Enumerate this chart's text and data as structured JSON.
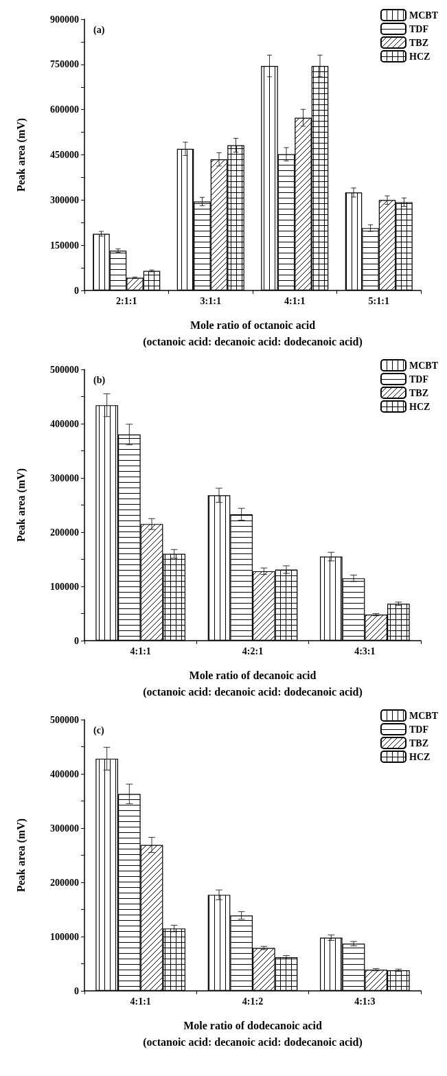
{
  "chart_data": [
    {
      "type": "bar",
      "annotations": [
        "(a)"
      ],
      "xlabel": "Mole ratio of octanoic acid\n(octanoic acid: decanoic acid: dodecanoic acid)",
      "ylabel": "Peak area (mV)",
      "categories": [
        "2:1:1",
        "3:1:1",
        "4:1:1",
        "5:1:1"
      ],
      "series": [
        {
          "name": "MCBT",
          "color": "#000000",
          "values": [
            188000,
            470000,
            745000,
            325000
          ],
          "errors": [
            8000,
            22000,
            36000,
            15000
          ]
        },
        {
          "name": "TDF",
          "color": "#000000",
          "values": [
            132000,
            295000,
            452000,
            207000
          ],
          "errors": [
            6000,
            14000,
            22000,
            11000
          ]
        },
        {
          "name": "TBZ",
          "color": "#000000",
          "values": [
            42000,
            435000,
            573000,
            300000
          ],
          "errors": [
            2000,
            22000,
            28000,
            14000
          ]
        },
        {
          "name": "HCZ",
          "color": "#000000",
          "values": [
            65000,
            482000,
            745000,
            293000
          ],
          "errors": [
            3000,
            23000,
            36000,
            14000
          ]
        }
      ],
      "ylim": [
        0,
        900000
      ],
      "yticks": [
        0,
        {
          "value": 75000,
          "label": null
        },
        150000,
        {
          "value": 225000,
          "label": null
        },
        300000,
        {
          "value": 375000,
          "label": null
        },
        450000,
        {
          "value": 525000,
          "label": null
        },
        600000,
        {
          "value": 675000,
          "label": null
        },
        750000,
        {
          "value": 825000,
          "label": null
        },
        900000
      ],
      "grid": false,
      "legend": "top right"
    },
    {
      "type": "bar",
      "annotations": [
        "(b)"
      ],
      "xlabel": "Mole ratio of decanoic acid\n(octanoic acid: decanoic acid: dodecanoic acid)",
      "ylabel": "Peak area (mV)",
      "categories": [
        "4:1:1",
        "4:2:1",
        "4:3:1"
      ],
      "series": [
        {
          "name": "MCBT",
          "color": "#000000",
          "values": [
            434000,
            268000,
            155000
          ],
          "errors": [
            21000,
            13000,
            8000
          ]
        },
        {
          "name": "TDF",
          "color": "#000000",
          "values": [
            380000,
            233000,
            115000
          ],
          "errors": [
            19000,
            11000,
            6000
          ]
        },
        {
          "name": "TBZ",
          "color": "#000000",
          "values": [
            215000,
            128000,
            48000
          ],
          "errors": [
            10000,
            6000,
            2000
          ]
        },
        {
          "name": "HCZ",
          "color": "#000000",
          "values": [
            160000,
            131000,
            68000
          ],
          "errors": [
            8000,
            7000,
            3000
          ]
        }
      ],
      "ylim": [
        0,
        500000
      ],
      "yticks": [
        0,
        {
          "value": 50000,
          "label": null
        },
        100000,
        {
          "value": 150000,
          "label": null
        },
        200000,
        {
          "value": 250000,
          "label": null
        },
        300000,
        {
          "value": 350000,
          "label": null
        },
        400000,
        {
          "value": 450000,
          "label": null
        },
        500000
      ],
      "grid": false,
      "legend": "top right"
    },
    {
      "type": "bar",
      "annotations": [
        "(c)"
      ],
      "xlabel": "Mole ratio of dodecanoic acid\n(octanoic acid: decanoic acid: dodecanoic acid)",
      "ylabel": "Peak area (mV)",
      "categories": [
        "4:1:1",
        "4:1:2",
        "4:1:3"
      ],
      "series": [
        {
          "name": "MCBT",
          "color": "#000000",
          "values": [
            428000,
            177000,
            98000
          ],
          "errors": [
            21000,
            9000,
            5000
          ]
        },
        {
          "name": "TDF",
          "color": "#000000",
          "values": [
            363000,
            139000,
            87000
          ],
          "errors": [
            18000,
            7000,
            4000
          ]
        },
        {
          "name": "TBZ",
          "color": "#000000",
          "values": [
            269000,
            79000,
            39000
          ],
          "errors": [
            14000,
            3000,
            2000
          ]
        },
        {
          "name": "HCZ",
          "color": "#000000",
          "values": [
            115000,
            62000,
            38000
          ],
          "errors": [
            6000,
            3000,
            2000
          ]
        }
      ],
      "ylim": [
        0,
        500000
      ],
      "yticks": [
        0,
        {
          "value": 50000,
          "label": null
        },
        100000,
        {
          "value": 150000,
          "label": null
        },
        200000,
        {
          "value": 250000,
          "label": null
        },
        300000,
        {
          "value": 350000,
          "label": null
        },
        400000,
        {
          "value": 450000,
          "label": null
        },
        500000
      ],
      "grid": false,
      "legend": "top right"
    }
  ]
}
